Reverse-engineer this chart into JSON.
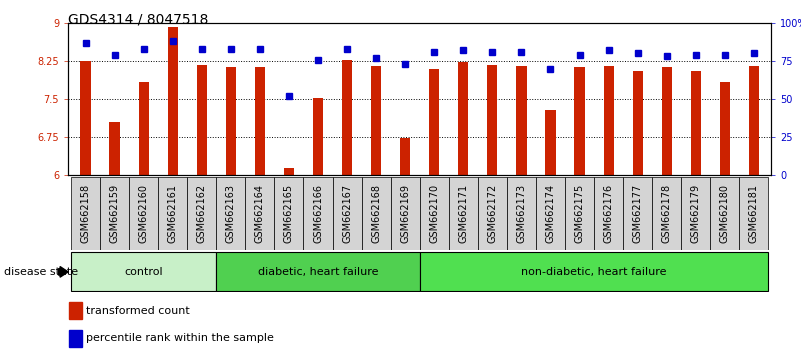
{
  "title": "GDS4314 / 8047518",
  "samples": [
    "GSM662158",
    "GSM662159",
    "GSM662160",
    "GSM662161",
    "GSM662162",
    "GSM662163",
    "GSM662164",
    "GSM662165",
    "GSM662166",
    "GSM662167",
    "GSM662168",
    "GSM662169",
    "GSM662170",
    "GSM662171",
    "GSM662172",
    "GSM662173",
    "GSM662174",
    "GSM662175",
    "GSM662176",
    "GSM662177",
    "GSM662178",
    "GSM662179",
    "GSM662180",
    "GSM662181"
  ],
  "bar_values": [
    8.25,
    7.05,
    7.83,
    8.93,
    8.17,
    8.14,
    8.13,
    6.15,
    7.53,
    8.28,
    8.16,
    6.73,
    8.1,
    8.23,
    8.17,
    8.16,
    7.28,
    8.13,
    8.16,
    8.05,
    8.13,
    8.05,
    7.83,
    8.15
  ],
  "percentile_values": [
    87,
    79,
    83,
    88,
    83,
    83,
    83,
    52,
    76,
    83,
    77,
    73,
    81,
    82,
    81,
    81,
    70,
    79,
    82,
    80,
    78,
    79,
    79,
    80
  ],
  "bar_color": "#cc2200",
  "marker_color": "#0000cc",
  "ylim_left": [
    6,
    9
  ],
  "ylim_right": [
    0,
    100
  ],
  "yticks_left": [
    6,
    6.75,
    7.5,
    8.25,
    9
  ],
  "ytick_labels_left": [
    "6",
    "6.75",
    "7.5",
    "8.25",
    "9"
  ],
  "yticks_right": [
    0,
    25,
    50,
    75,
    100
  ],
  "ytick_labels_right": [
    "0",
    "25",
    "50",
    "75",
    "100%"
  ],
  "groups": [
    {
      "label": "control",
      "start": 0,
      "end": 4,
      "color": "#c8f0c8"
    },
    {
      "label": "diabetic, heart failure",
      "start": 5,
      "end": 11,
      "color": "#50d050"
    },
    {
      "label": "non-diabetic, heart failure",
      "start": 12,
      "end": 23,
      "color": "#50e050"
    }
  ],
  "legend_bar_label": "transformed count",
  "legend_marker_label": "percentile rank within the sample",
  "disease_state_label": "disease state",
  "background_color": "#ffffff",
  "axes_bg_color": "#ffffff",
  "xtick_bg_color": "#d4d4d4",
  "title_fontsize": 10,
  "tick_label_fontsize": 7,
  "bar_width": 0.35
}
